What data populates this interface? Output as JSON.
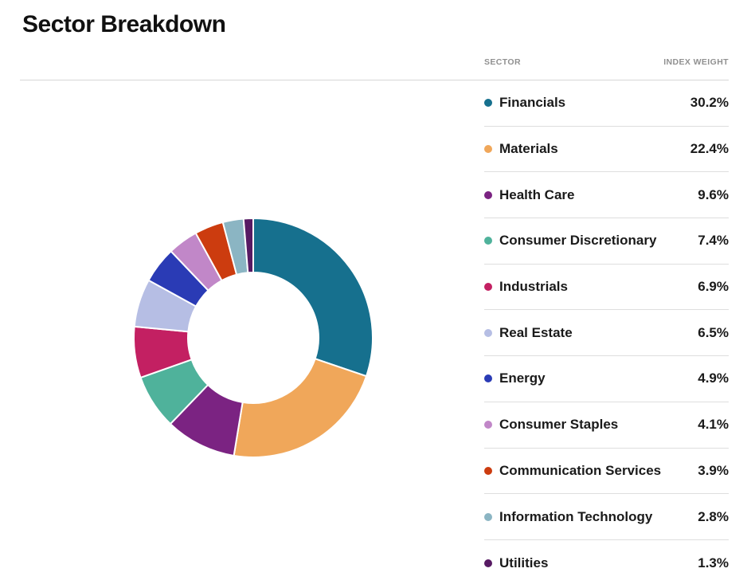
{
  "page": {
    "title": "Sector Breakdown"
  },
  "table": {
    "headers": {
      "sector": "SECTOR",
      "weight": "INDEX WEIGHT"
    },
    "rows": [
      {
        "label": "Financials",
        "weight": "30.2%"
      },
      {
        "label": "Materials",
        "weight": "22.4%"
      },
      {
        "label": "Health Care",
        "weight": "9.6%"
      },
      {
        "label": "Consumer Discretionary",
        "weight": "7.4%"
      },
      {
        "label": "Industrials",
        "weight": "6.9%"
      },
      {
        "label": "Real Estate",
        "weight": "6.5%"
      },
      {
        "label": "Energy",
        "weight": "4.9%"
      },
      {
        "label": "Consumer Staples",
        "weight": "4.1%"
      },
      {
        "label": "Communication Services",
        "weight": "3.9%"
      },
      {
        "label": "Information Technology",
        "weight": "2.8%"
      },
      {
        "label": "Utilities",
        "weight": "1.3%"
      }
    ]
  },
  "chart_data": {
    "type": "pie",
    "title": "Sector Breakdown",
    "donut": true,
    "categories": [
      "Financials",
      "Materials",
      "Health Care",
      "Consumer Discretionary",
      "Industrials",
      "Real Estate",
      "Energy",
      "Consumer Staples",
      "Communication Services",
      "Information Technology",
      "Utilities"
    ],
    "values": [
      30.2,
      22.4,
      9.6,
      7.4,
      6.9,
      6.5,
      4.9,
      4.1,
      3.9,
      2.8,
      1.3
    ],
    "colors": [
      "#16708E",
      "#F0A75A",
      "#7B2382",
      "#4FB29B",
      "#C32062",
      "#B6BEE4",
      "#2A3BB5",
      "#C187C8",
      "#CC3C0F",
      "#8BB5C3",
      "#571A63"
    ],
    "start_angle_deg": -90,
    "direction": "clockwise",
    "outer_radius": 150,
    "inner_radius": 82,
    "segment_gap_color": "#ffffff",
    "legend_position": "right"
  }
}
